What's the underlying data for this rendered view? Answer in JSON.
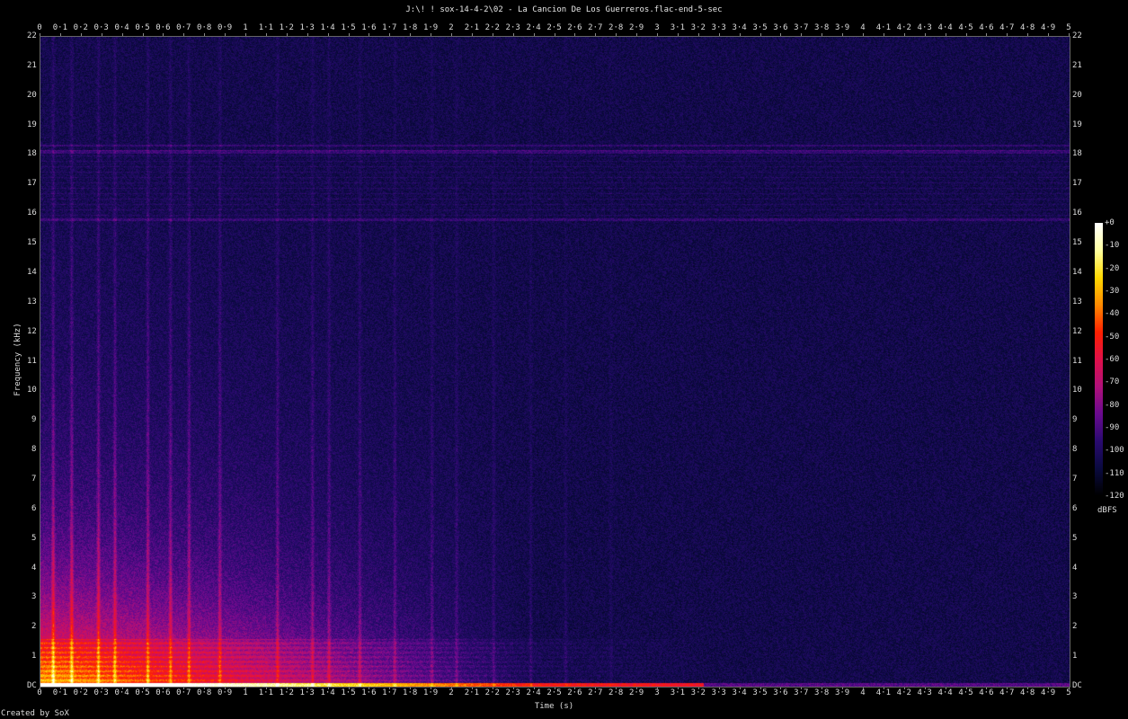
{
  "title": "J:\\! ! sox-14-4-2\\02 - La Cancion De Los Guerreros.flac-end-5-sec",
  "credit": "Created by SoX",
  "chart_data": {
    "type": "heatmap",
    "title": "J:\\! ! sox-14-4-2\\02 - La Cancion De Los Guerreros.flac-end-5-sec",
    "xlabel": "Time (s)",
    "ylabel": "Frequency (kHz)",
    "xlim": [
      0,
      5
    ],
    "ylim": [
      0,
      22
    ],
    "x_ticks": [
      "0",
      "0·1",
      "0·2",
      "0·3",
      "0·4",
      "0·5",
      "0·6",
      "0·7",
      "0·8",
      "0·9",
      "1",
      "1·1",
      "1·2",
      "1·3",
      "1·4",
      "1·5",
      "1·6",
      "1·7",
      "1·8",
      "1·9",
      "2",
      "2·1",
      "2·2",
      "2·3",
      "2·4",
      "2·5",
      "2·6",
      "2·7",
      "2·8",
      "2·9",
      "3",
      "3·1",
      "3·2",
      "3·3",
      "3·4",
      "3·5",
      "3·6",
      "3·7",
      "3·8",
      "3·9",
      "4",
      "4·1",
      "4·2",
      "4·3",
      "4·4",
      "4·5",
      "4·6",
      "4·7",
      "4·8",
      "4·9",
      "5"
    ],
    "y_ticks": [
      "DC",
      "1",
      "2",
      "3",
      "4",
      "5",
      "6",
      "7",
      "8",
      "9",
      "10",
      "11",
      "12",
      "13",
      "14",
      "15",
      "16",
      "17",
      "18",
      "19",
      "20",
      "21",
      "22"
    ],
    "colorbar": {
      "unit": "dBFS",
      "range": [
        -120,
        0
      ],
      "ticks": [
        "+0",
        "-10",
        "-20",
        "-30",
        "-40",
        "-50",
        "-60",
        "-70",
        "-80",
        "-90",
        "-100",
        "-110",
        "-120"
      ],
      "colors": [
        "#000000",
        "#0a0a40",
        "#2a0a70",
        "#6a0a90",
        "#b0107a",
        "#e0104a",
        "#ff2000",
        "#ff8a00",
        "#ffd800",
        "#ffffa0",
        "#ffffff"
      ]
    },
    "grid": false
  }
}
